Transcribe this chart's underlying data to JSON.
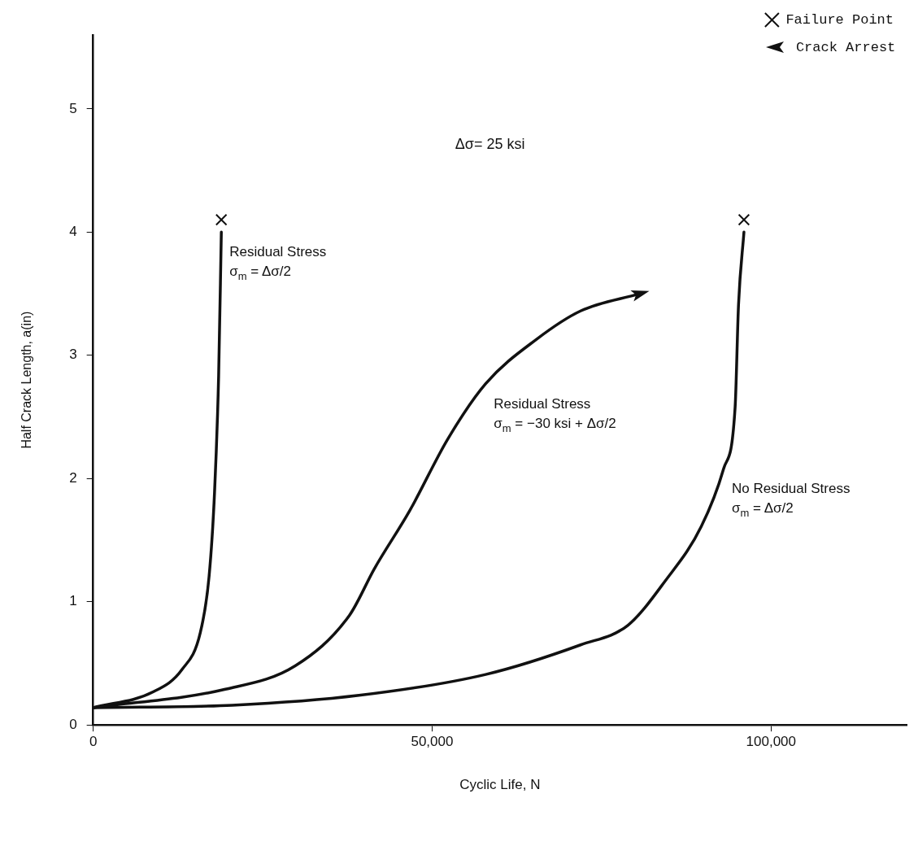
{
  "chart_data": {
    "type": "line",
    "xlabel": "Cyclic Life, N",
    "ylabel": "Half Crack Length, a(in)",
    "xlim": [
      0,
      120000
    ],
    "ylim": [
      0,
      5.6
    ],
    "xticks": [
      0,
      {
        "value": 50000,
        "label": "50,000"
      },
      {
        "value": 100000,
        "label": "100,000"
      }
    ],
    "yticks": [
      0,
      1,
      2,
      3,
      4,
      5
    ],
    "grid": false,
    "legend": "top right",
    "marker": "none",
    "line_style": "solid",
    "series": [
      {
        "color": "#111111",
        "x": [
          0,
          8900,
          13100,
          15800,
          17100,
          17900,
          18500,
          18900
        ],
        "values": [
          0.14,
          0.27,
          0.45,
          0.75,
          1.21,
          1.89,
          2.83,
          4.0
        ]
      },
      {
        "color": "#111111",
        "x": [
          0,
          19500,
          29800,
          37800,
          41500,
          46700,
          52300,
          57900,
          65400,
          71900,
          80600
        ],
        "values": [
          0.14,
          0.29,
          0.48,
          0.89,
          1.27,
          1.74,
          2.32,
          2.77,
          3.13,
          3.36,
          3.5
        ]
      },
      {
        "color": "#111111",
        "x": [
          0,
          20500,
          39200,
          57900,
          71900,
          78900,
          84400,
          89700,
          93000,
          94700,
          95200,
          96000
        ],
        "values": [
          0.14,
          0.16,
          0.24,
          0.41,
          0.65,
          0.81,
          1.17,
          1.61,
          2.08,
          2.58,
          3.41,
          4.0
        ]
      },
      {
        "type": "scatter",
        "name": "Failure Point",
        "marker": "cross",
        "color": "#111111",
        "x": [
          18900,
          96000
        ],
        "values": [
          4.1,
          4.1
        ]
      }
    ],
    "annotations": [
      "Δσ= 25 ksi",
      "Crack Arrest",
      {
        "text": "Residual Stress\nσ$_{m}$ = Δσ/2",
        "x": 18900,
        "y": 4.0
      },
      {
        "text": "Residual Stress\nσ$_{m}$ = −30 ksi + Δσ/2",
        "x": 57900,
        "y": 2.77
      },
      {
        "text": "No Residual Stress\nσ$_{m}$ = Δσ/2",
        "x": 93000,
        "y": 2.08
      }
    ]
  }
}
